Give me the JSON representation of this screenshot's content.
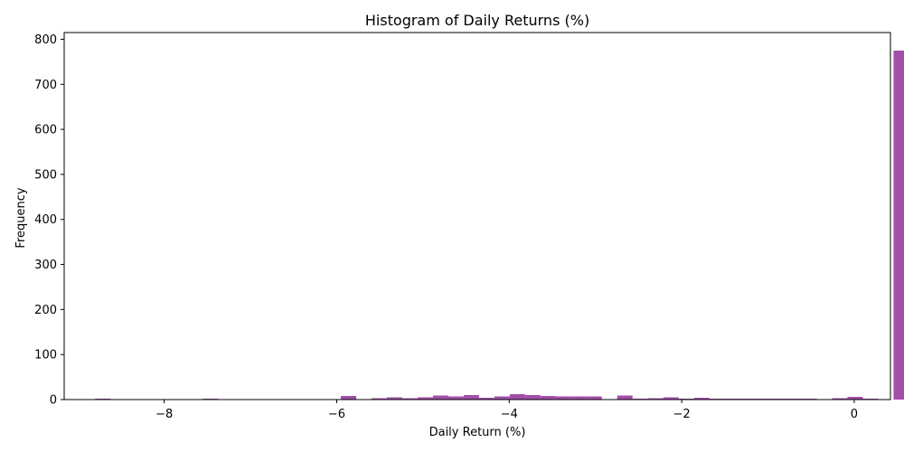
{
  "chart_data": {
    "type": "bar",
    "title": "Histogram of Daily Returns (%)",
    "xlabel": "Daily Return (%)",
    "ylabel": "Frequency",
    "xlim": [
      -9.16,
      0.42
    ],
    "ylim": [
      0,
      815
    ],
    "xticks": [
      -8,
      -6,
      -4,
      -2,
      0
    ],
    "yticks": [
      0,
      100,
      200,
      300,
      400,
      500,
      600,
      700,
      800
    ],
    "bin_width": 0.178,
    "bins_start": -8.8,
    "bar_color": "#a24fa8",
    "grid": false,
    "counts": [
      2,
      0,
      0,
      0,
      0,
      0,
      0,
      2,
      0,
      0,
      0,
      1,
      1,
      1,
      1,
      1,
      8,
      0,
      3,
      5,
      3,
      5,
      9,
      7,
      10,
      4,
      7,
      12,
      10,
      8,
      7,
      7,
      7,
      0,
      9,
      2,
      3,
      5,
      2,
      4,
      2,
      2,
      2,
      2,
      2,
      2,
      2,
      0,
      3,
      6,
      2,
      0,
      775
    ]
  }
}
